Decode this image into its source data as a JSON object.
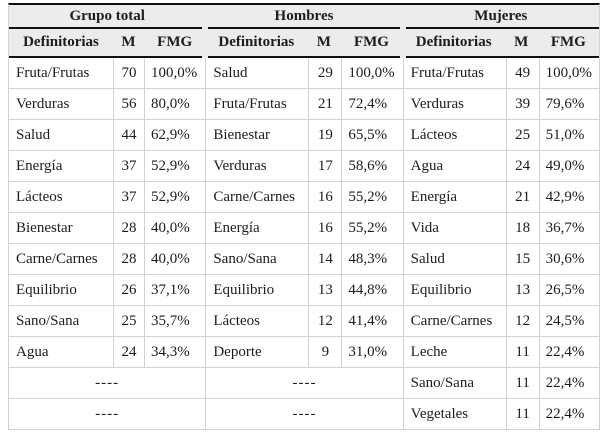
{
  "colors": {
    "header_background": "#ececec",
    "heavy_rule": "#111111",
    "light_line": "#d2d2d2",
    "text": "#1c1c1c"
  },
  "table": {
    "groups": [
      {
        "title": "Grupo total",
        "columns": [
          "Definitorias",
          "M",
          "FMG"
        ],
        "rows": [
          [
            "Fruta/Frutas",
            "70",
            "100,0%"
          ],
          [
            "Verduras",
            "56",
            "80,0%"
          ],
          [
            "Salud",
            "44",
            "62,9%"
          ],
          [
            "Energía",
            "37",
            "52,9%"
          ],
          [
            "Lácteos",
            "37",
            "52,9%"
          ],
          [
            "Bienestar",
            "28",
            "40,0%"
          ],
          [
            "Carne/Carnes",
            "28",
            "40,0%"
          ],
          [
            "Equilibrio",
            "26",
            "37,1%"
          ],
          [
            "Sano/Sana",
            "25",
            "35,7%"
          ],
          [
            "Agua",
            "24",
            "34,3%"
          ],
          [
            "----"
          ],
          [
            "----"
          ]
        ]
      },
      {
        "title": "Hombres",
        "columns": [
          "Definitorias",
          "M",
          "FMG"
        ],
        "rows": [
          [
            "Salud",
            "29",
            "100,0%"
          ],
          [
            "Fruta/Frutas",
            "21",
            "72,4%"
          ],
          [
            "Bienestar",
            "19",
            "65,5%"
          ],
          [
            "Verduras",
            "17",
            "58,6%"
          ],
          [
            "Carne/Carnes",
            "16",
            "55,2%"
          ],
          [
            "Energía",
            "16",
            "55,2%"
          ],
          [
            "Sano/Sana",
            "14",
            "48,3%"
          ],
          [
            "Equilibrio",
            "13",
            "44,8%"
          ],
          [
            "Lácteos",
            "12",
            "41,4%"
          ],
          [
            "Deporte",
            "9",
            "31,0%"
          ],
          [
            "----"
          ],
          [
            "----"
          ]
        ]
      },
      {
        "title": "Mujeres",
        "columns": [
          "Definitorias",
          "M",
          "FMG"
        ],
        "rows": [
          [
            "Fruta/Frutas",
            "49",
            "100,0%"
          ],
          [
            "Verduras",
            "39",
            "79,6%"
          ],
          [
            "Lácteos",
            "25",
            "51,0%"
          ],
          [
            "Agua",
            "24",
            "49,0%"
          ],
          [
            "Energía",
            "21",
            "42,9%"
          ],
          [
            "Vida",
            "18",
            "36,7%"
          ],
          [
            "Salud",
            "15",
            "30,6%"
          ],
          [
            "Equilibrio",
            "13",
            "26,5%"
          ],
          [
            "Carne/Carnes",
            "12",
            "24,5%"
          ],
          [
            "Leche",
            "11",
            "22,4%"
          ],
          [
            "Sano/Sana",
            "11",
            "22,4%"
          ],
          [
            "Vegetales",
            "11",
            "22,4%"
          ]
        ]
      }
    ]
  }
}
